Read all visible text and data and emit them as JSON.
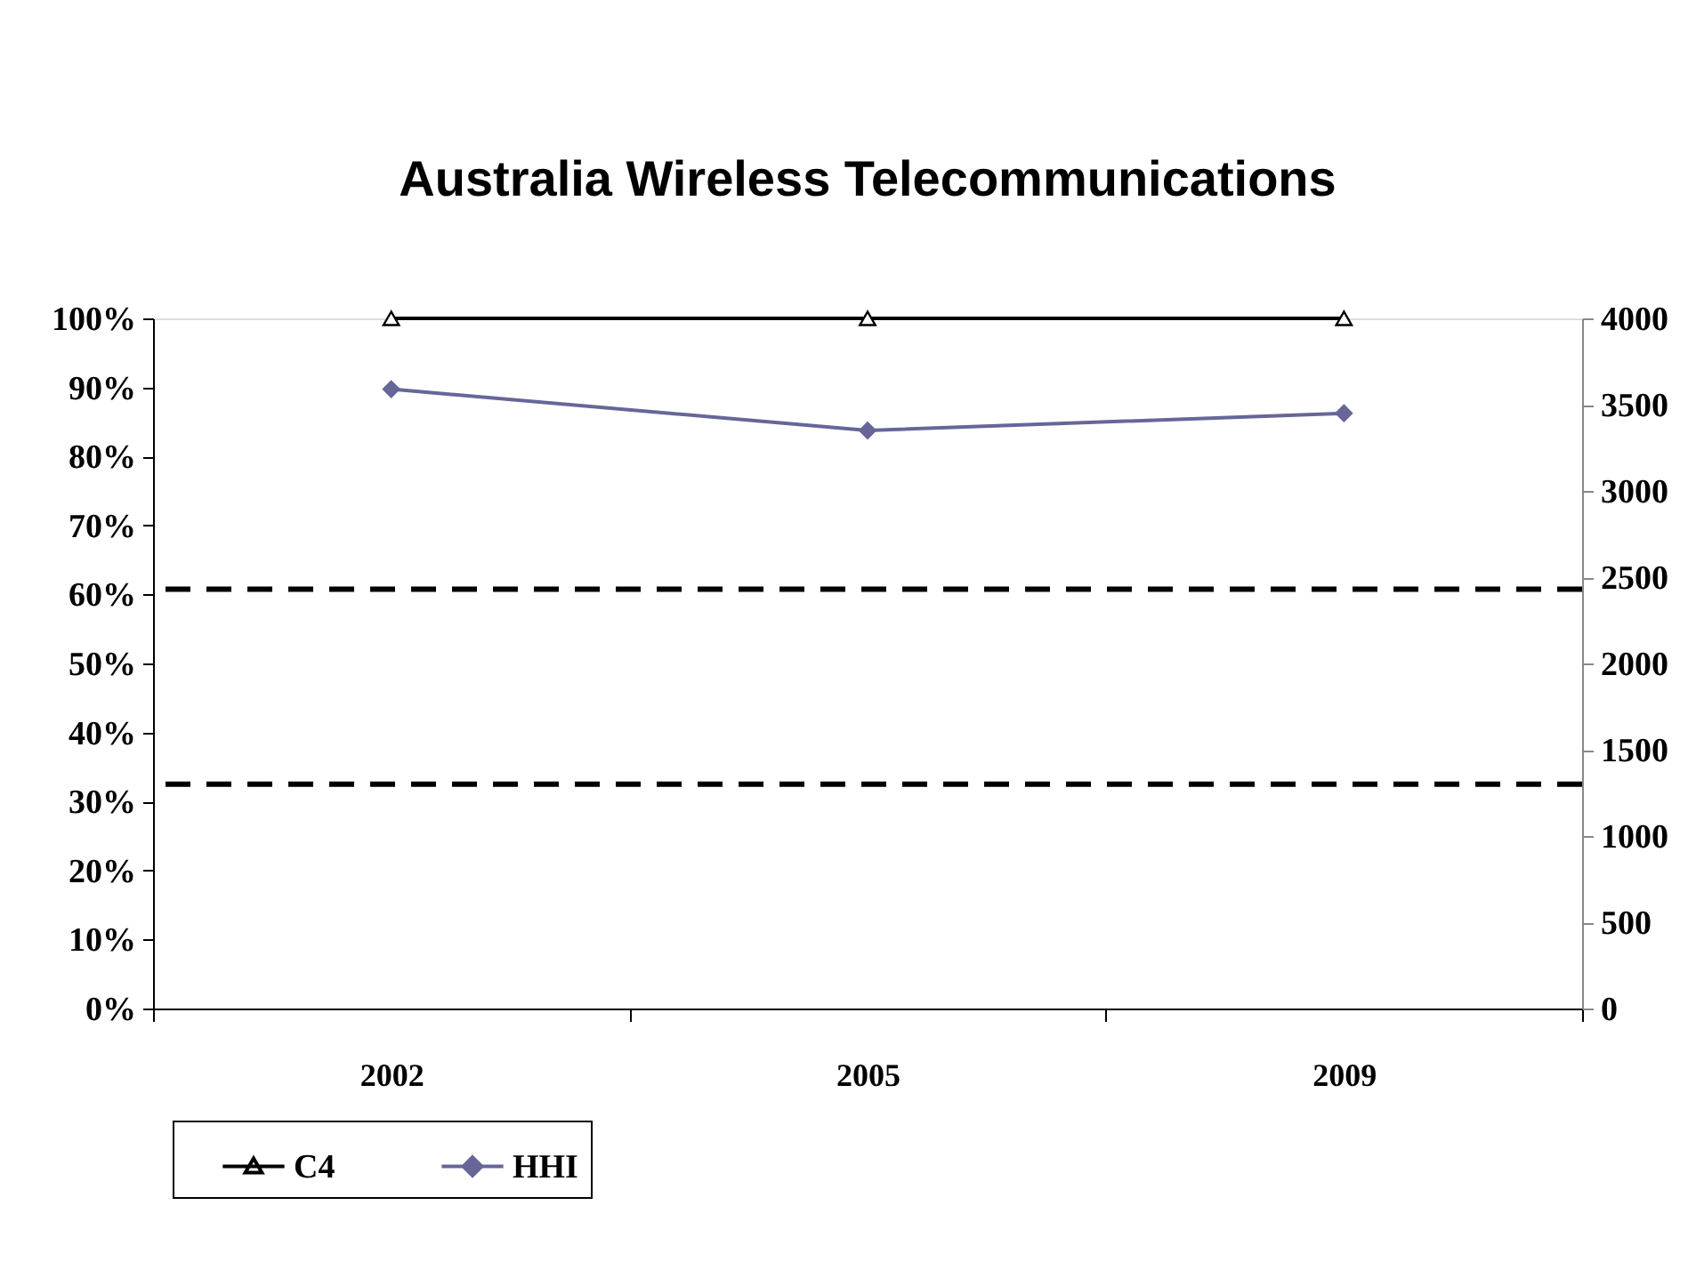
{
  "chart_data": {
    "type": "line",
    "title": "Australia Wireless Telecommunications",
    "categories": [
      "2002",
      "2005",
      "2009"
    ],
    "series": [
      {
        "name": "C4",
        "color": "#000000",
        "marker": "triangle",
        "values": [
          100,
          100,
          100
        ]
      },
      {
        "name": "HHI",
        "color": "#666699",
        "marker": "diamond",
        "axis": "y2",
        "values": [
          3590,
          3350,
          3450
        ]
      }
    ],
    "ylim": [
      0,
      100
    ],
    "yticks": [
      {
        "value": 0,
        "label": "0%"
      },
      {
        "value": 10,
        "label": "10%"
      },
      {
        "value": 20,
        "label": "20%"
      },
      {
        "value": 30,
        "label": "30%"
      },
      {
        "value": 40,
        "label": "40%"
      },
      {
        "value": 50,
        "label": "50%"
      },
      {
        "value": 60,
        "label": "60%"
      },
      {
        "value": 70,
        "label": "70%"
      },
      {
        "value": 80,
        "label": "80%"
      },
      {
        "value": 90,
        "label": "90%"
      },
      {
        "value": 100,
        "label": "100%"
      }
    ],
    "y2lim": [
      0,
      4000
    ],
    "y2ticks": [
      0,
      500,
      1000,
      1500,
      2000,
      2500,
      3000,
      3500,
      4000
    ],
    "ref_lines": [
      {
        "axis": "y2",
        "value": 2430,
        "color": "#000000",
        "line_style": "dashed"
      },
      {
        "axis": "y2",
        "value": 1300,
        "color": "#000000",
        "line_style": "dashed"
      }
    ],
    "line_style": "solid",
    "grid": false,
    "legend": "bottom left"
  }
}
